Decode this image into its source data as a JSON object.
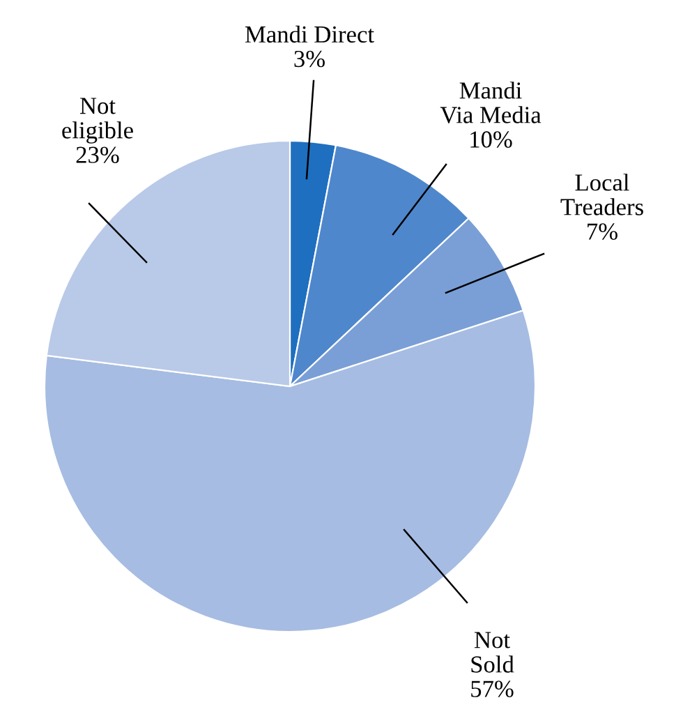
{
  "chart_data": {
    "type": "pie",
    "categories": [
      "Mandi Direct",
      "Mandi\nVia Media",
      "Local\nTreaders",
      "Not\nSold",
      "Not\neligible"
    ],
    "values": [
      3,
      10,
      7,
      57,
      23
    ],
    "colors": [
      "#1f6fc0",
      "#4f87cc",
      "#7a9fd6",
      "#a6bce2",
      "#b9c9e8"
    ],
    "value_labels": [
      "3%",
      "10%",
      "7%",
      "57%",
      "23%"
    ]
  }
}
